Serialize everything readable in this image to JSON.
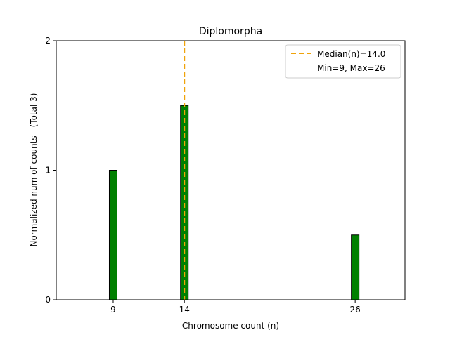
{
  "chart_data": {
    "type": "bar",
    "title": "Diplomorpha",
    "xlabel": "Chromosome count (n)",
    "ylabel": "Normalized num of counts",
    "ylabel_extra": "(Total 3)",
    "x": [
      9,
      14,
      26
    ],
    "values": [
      1.0,
      1.5,
      0.5
    ],
    "xlim": [
      5,
      29.5
    ],
    "ylim": [
      0,
      2
    ],
    "xticks": [
      9,
      14,
      26
    ],
    "yticks": [
      0,
      1,
      2
    ],
    "grid": false,
    "bar_color": "#008000",
    "bar_edge_color": "#000000",
    "median_color": "#f0a30a",
    "median_x": 14.0,
    "legend": {
      "placement": "top-right",
      "entries": [
        "Median(n)=14.0",
        "Min=9, Max=26"
      ]
    }
  }
}
